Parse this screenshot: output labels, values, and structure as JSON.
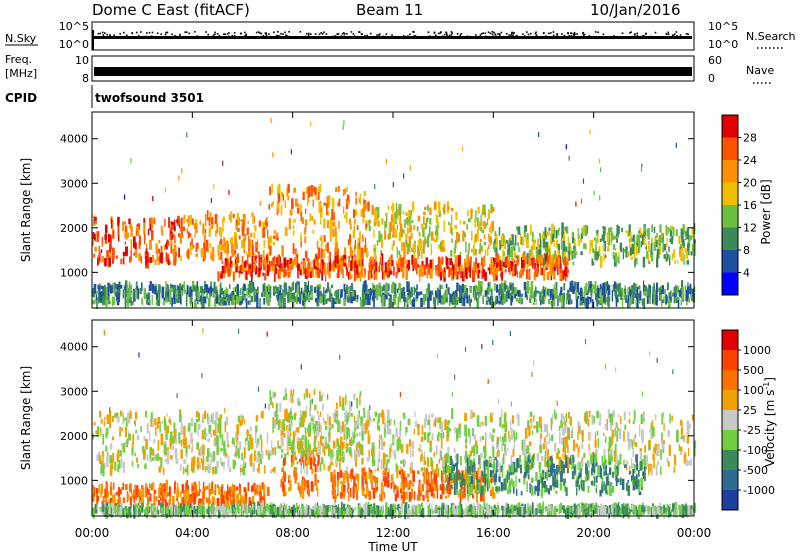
{
  "header": {
    "station": "Dome C East (fitACF)",
    "beam": "Beam 11",
    "date": "10/Jan/2016"
  },
  "top_panels": {
    "nsky_label": "N.Sky",
    "nsky_ticks": [
      "10^5",
      "10^0"
    ],
    "nsearch_label": "N.Search",
    "nsearch_ticks": [
      "10^5",
      "10^0"
    ],
    "freq_label": "Freq.",
    "freq_unit": "[MHz]",
    "freq_ticks": [
      "10",
      "8"
    ],
    "nave_label": "Nave",
    "nave_ticks": [
      "60",
      "0"
    ],
    "cpid_label": "CPID",
    "cpid_value": "twofsound 3501"
  },
  "x_axis": {
    "ticks": [
      "00:00",
      "04:00",
      "08:00",
      "12:00",
      "16:00",
      "20:00",
      "00:00"
    ],
    "label": "Time UT"
  },
  "colors": {
    "power_scale": [
      "#0000ff",
      "#1f4fa0",
      "#3a8a5a",
      "#6fbf3f",
      "#f0c000",
      "#ff9000",
      "#ff5000",
      "#e00000"
    ],
    "velocity_scale": [
      "#1f3fa0",
      "#2f6a8f",
      "#3a8a5a",
      "#6fcf3f",
      "#c8c8c8",
      "#f0a000",
      "#ff7000",
      "#ff4000",
      "#e00000"
    ]
  },
  "chart_data": [
    {
      "type": "line",
      "name": "nsky-nsearch",
      "x_range_hours": [
        0,
        24
      ],
      "ylim_log10": [
        0,
        5
      ]
    },
    {
      "type": "line",
      "name": "freq-nave",
      "freq_range_mhz": [
        8,
        10
      ],
      "nave_range": [
        0,
        60
      ]
    },
    {
      "type": "heatmap",
      "name": "power",
      "ylabel": "Slant Range [km]",
      "yticks": [
        "1000",
        "2000",
        "3000",
        "4000"
      ],
      "ylim": [
        200,
        4600
      ],
      "colorbar_label": "Power [dB]",
      "colorbar_ticks": [
        "4",
        "8",
        "12",
        "16",
        "20",
        "24",
        "28"
      ],
      "bands": [
        {
          "t0": 0.0,
          "t1": 3.5,
          "r0": 1200,
          "r1": 2200,
          "level": 6
        },
        {
          "t0": 3.5,
          "t1": 7.0,
          "r0": 1300,
          "r1": 2300,
          "level": 5
        },
        {
          "t0": 7.0,
          "t1": 11.0,
          "r0": 1300,
          "r1": 2900,
          "level": 5
        },
        {
          "t0": 11.0,
          "t1": 16.0,
          "r0": 1400,
          "r1": 2500,
          "level": 4
        },
        {
          "t0": 16.0,
          "t1": 24.0,
          "r0": 1200,
          "r1": 2000,
          "level": 3
        },
        {
          "t0": 0.0,
          "t1": 24.0,
          "r0": 300,
          "r1": 700,
          "level": 2
        },
        {
          "t0": 5.0,
          "t1": 19.0,
          "r0": 900,
          "r1": 1300,
          "level": 6
        }
      ]
    },
    {
      "type": "heatmap",
      "name": "velocity",
      "ylabel": "Slant Range [km]",
      "yticks": [
        "1000",
        "2000",
        "3000",
        "4000"
      ],
      "ylim": [
        200,
        4600
      ],
      "colorbar_label": "Velocity [m s",
      "colorbar_unit_sup": "-1",
      "colorbar_unit_close": "]",
      "colorbar_ticks": [
        "1000",
        "500",
        "100",
        "25",
        "-25",
        "-100",
        "-500",
        "-1000"
      ],
      "bands": [
        {
          "t0": 0.0,
          "t1": 24.0,
          "r0": 1200,
          "r1": 2500,
          "level": 4
        },
        {
          "t0": 7.0,
          "t1": 11.0,
          "r0": 1500,
          "r1": 3000,
          "level": 4
        },
        {
          "t0": 0.0,
          "t1": 7.0,
          "r0": 400,
          "r1": 900,
          "level": 6
        },
        {
          "t0": 7.5,
          "t1": 9.0,
          "r0": 700,
          "r1": 1500,
          "level": 6
        },
        {
          "t0": 9.5,
          "t1": 16.0,
          "r0": 600,
          "r1": 1200,
          "level": 6
        },
        {
          "t0": 14.0,
          "t1": 22.0,
          "r0": 700,
          "r1": 1500,
          "level": 2
        },
        {
          "t0": 0.0,
          "t1": 24.0,
          "r0": 250,
          "r1": 400,
          "level": 3
        }
      ]
    }
  ]
}
